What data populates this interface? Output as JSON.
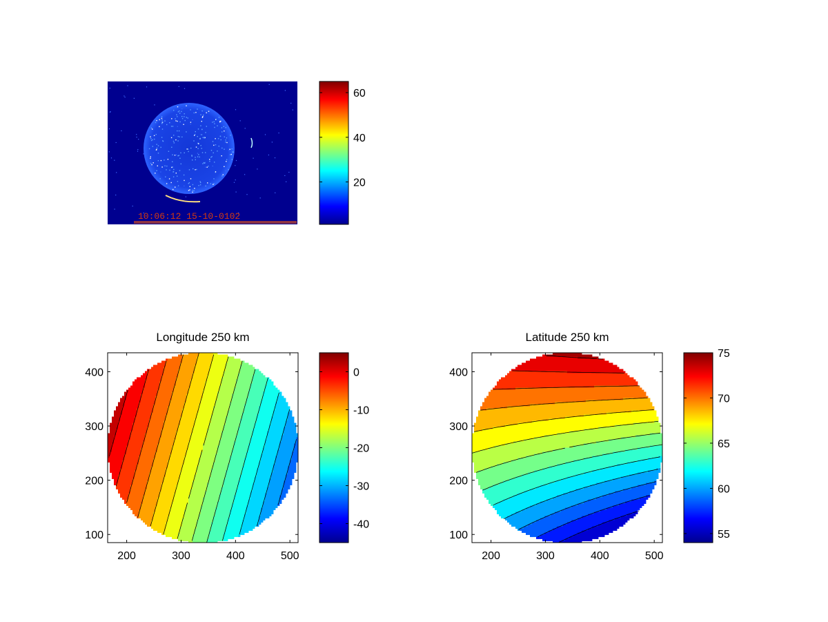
{
  "colormap": "jet",
  "chart_data": [
    {
      "type": "heatmap",
      "title": "",
      "image": {
        "content": "all-sky auroral image, dark blue background, bright circular field of view with speckle noise and a faint arc at the lower edge",
        "timestamp_text": "10:06:12 15-10-0102"
      },
      "colorbar": {
        "range": [
          1,
          65
        ],
        "ticks": [
          20,
          40,
          60
        ],
        "tick_labels": [
          "20",
          "40",
          "60"
        ]
      }
    },
    {
      "type": "heatmap",
      "title": "Longitude 250 km",
      "xlim": [
        165,
        515
      ],
      "ylim": [
        85,
        435
      ],
      "xticks": [
        200,
        300,
        400,
        500
      ],
      "xtick_labels": [
        "200",
        "300",
        "400",
        "500"
      ],
      "yticks": [
        100,
        200,
        300,
        400
      ],
      "ytick_labels": [
        "100",
        "200",
        "300",
        "400"
      ],
      "disk": {
        "center": [
          340,
          260
        ],
        "radius": 175
      },
      "field_range": [
        -35,
        3
      ],
      "colorbar": {
        "range": [
          -45,
          5
        ],
        "ticks": [
          -40,
          -30,
          -20,
          -10,
          0
        ],
        "tick_labels": [
          "-40",
          "-30",
          "-20",
          "-10",
          "0"
        ]
      }
    },
    {
      "type": "heatmap",
      "title": "Latitude 250 km",
      "xlim": [
        165,
        515
      ],
      "ylim": [
        85,
        435
      ],
      "xticks": [
        200,
        300,
        400,
        500
      ],
      "xtick_labels": [
        "200",
        "300",
        "400",
        "500"
      ],
      "yticks": [
        100,
        200,
        300,
        400
      ],
      "ytick_labels": [
        "100",
        "200",
        "300",
        "400"
      ],
      "disk": {
        "center": [
          340,
          260
        ],
        "radius": 175
      },
      "field_range": [
        55,
        75
      ],
      "colorbar": {
        "range": [
          54,
          75
        ],
        "ticks": [
          55,
          60,
          65,
          70,
          75
        ],
        "tick_labels": [
          "55",
          "60",
          "65",
          "70",
          "75"
        ]
      }
    }
  ]
}
